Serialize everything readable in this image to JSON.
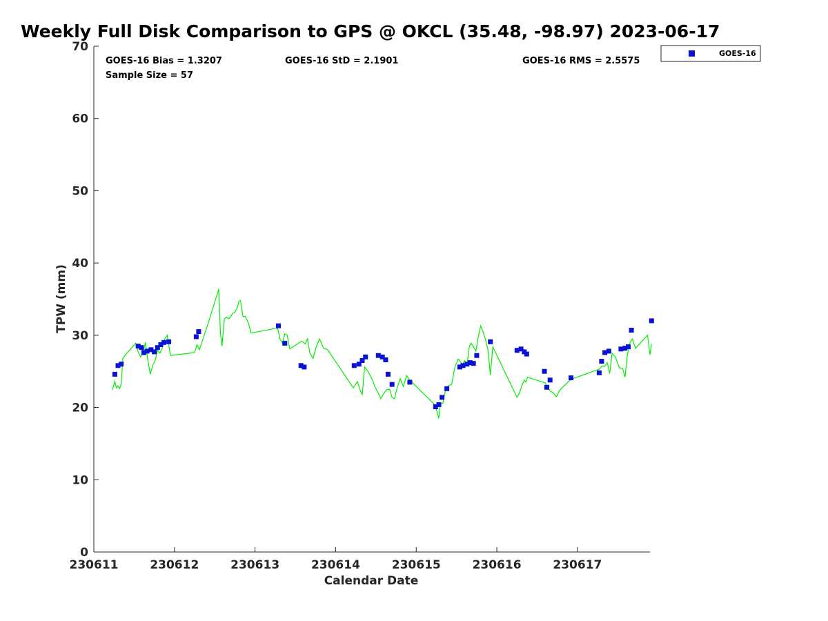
{
  "chart_data": {
    "type": "scatter",
    "title": "Weekly Full Disk Comparison to GPS @ OKCL (35.48, -98.97) 2023-06-17",
    "xlabel": "Calendar Date",
    "ylabel": "TPW (mm)",
    "xlim": [
      230611,
      230617.9
    ],
    "ylim": [
      0,
      70
    ],
    "x_ticks": [
      "230611",
      "230612",
      "230613",
      "230614",
      "230615",
      "230616",
      "230617"
    ],
    "y_ticks": [
      "0",
      "10",
      "20",
      "30",
      "40",
      "50",
      "60",
      "70"
    ],
    "grid": false,
    "legend_position": "top-right",
    "stats": {
      "bias": "GOES-16 Bias = 1.3207",
      "std": "GOES-16 StD = 2.1901",
      "rms": "GOES-16 RMS = 2.5575",
      "sample": "Sample Size = 57"
    },
    "series": [
      {
        "name": "GOES-16",
        "marker": "square",
        "color": "#0a12d6",
        "x": [
          230611.26,
          230611.3,
          230611.34,
          230611.55,
          230611.59,
          230611.62,
          230611.66,
          230611.71,
          230611.75,
          230611.79,
          230611.83,
          230611.87,
          230611.93,
          230612.27,
          230612.3,
          230613.29,
          230613.37,
          230613.57,
          230613.61,
          230614.23,
          230614.29,
          230614.33,
          230614.37,
          230614.53,
          230614.58,
          230614.62,
          230614.65,
          230614.7,
          230614.92,
          230615.24,
          230615.28,
          230615.32,
          230615.38,
          230615.54,
          230615.58,
          230615.63,
          230615.67,
          230615.71,
          230615.75,
          230615.92,
          230616.25,
          230616.3,
          230616.34,
          230616.37,
          230616.59,
          230616.62,
          230616.66,
          230616.92,
          230617.27,
          230617.3,
          230617.34,
          230617.39,
          230617.54,
          230617.59,
          230617.63,
          230617.67,
          230617.92
        ],
        "y": [
          24.6,
          25.8,
          26.0,
          28.5,
          28.3,
          27.6,
          27.8,
          28.0,
          27.7,
          28.3,
          28.7,
          29.0,
          29.1,
          29.8,
          30.5,
          31.3,
          28.9,
          25.8,
          25.6,
          25.8,
          26.0,
          26.5,
          27.0,
          27.2,
          27.0,
          26.6,
          24.6,
          23.2,
          23.5,
          20.1,
          20.4,
          21.4,
          22.6,
          25.6,
          25.8,
          26.0,
          26.2,
          26.1,
          27.2,
          29.1,
          27.9,
          28.1,
          27.7,
          27.4,
          25.0,
          22.8,
          23.8,
          24.1,
          24.8,
          26.4,
          27.6,
          27.8,
          28.1,
          28.2,
          28.4,
          30.7,
          32.0
        ]
      },
      {
        "name": "",
        "color": "#00ee00",
        "x": [
          230611.23,
          230611.26,
          230611.28,
          230611.3,
          230611.32,
          230611.34,
          230611.36,
          230611.4,
          230611.45,
          230611.52,
          230611.55,
          230611.58,
          230611.61,
          230611.64,
          230611.67,
          230611.7,
          230611.73,
          230611.76,
          230611.79,
          230611.82,
          230611.85,
          230611.88,
          230611.91,
          230611.95,
          230612.25,
          230612.28,
          230612.31,
          230612.4,
          230612.55,
          230612.57,
          230612.59,
          230612.62,
          230612.65,
          230612.68,
          230612.72,
          230612.75,
          230612.78,
          230612.8,
          230612.82,
          230612.85,
          230612.88,
          230612.92,
          230612.95,
          230613.28,
          230613.31,
          230613.34,
          230613.37,
          230613.4,
          230613.43,
          230613.58,
          230613.62,
          230613.65,
          230613.68,
          230613.72,
          230613.76,
          230613.8,
          230613.85,
          230613.9,
          230614.22,
          230614.27,
          230614.31,
          230614.33,
          230614.36,
          230614.4,
          230614.45,
          230614.49,
          230614.53,
          230614.56,
          230614.6,
          230614.64,
          230614.67,
          230614.7,
          230614.73,
          230614.76,
          230614.8,
          230614.84,
          230614.88,
          230614.92,
          230615.22,
          230615.25,
          230615.28,
          230615.3,
          230615.33,
          230615.37,
          230615.4,
          230615.44,
          230615.48,
          230615.52,
          230615.55,
          230615.57,
          230615.6,
          230615.63,
          230615.66,
          230615.68,
          230615.71,
          230615.74,
          230615.77,
          230615.8,
          230615.83,
          230615.86,
          230615.89,
          230615.92,
          230615.95,
          230616.25,
          230616.28,
          230616.31,
          230616.34,
          230616.36,
          230616.38,
          230616.6,
          230616.63,
          230616.66,
          230616.7,
          230616.74,
          230616.78,
          230616.92,
          230617.27,
          230617.3,
          230617.34,
          230617.37,
          230617.4,
          230617.43,
          230617.47,
          230617.52,
          230617.56,
          230617.59,
          230617.62,
          230617.65,
          230617.68,
          230617.72,
          230617.87,
          230617.9,
          230617.92
        ],
        "y": [
          22.4,
          23.6,
          22.7,
          23.0,
          22.6,
          23.3,
          26.8,
          27.4,
          28.0,
          28.9,
          27.7,
          27.0,
          27.6,
          29.0,
          26.5,
          24.6,
          25.8,
          26.5,
          27.9,
          27.5,
          28.3,
          29.5,
          30.0,
          27.2,
          27.6,
          28.7,
          28.0,
          31.0,
          36.4,
          30.3,
          28.5,
          32.3,
          32.5,
          32.3,
          33.0,
          33.2,
          33.8,
          34.7,
          34.8,
          32.6,
          32.6,
          31.6,
          30.3,
          31.0,
          29.5,
          28.9,
          30.2,
          30.0,
          28.1,
          29.2,
          28.8,
          29.5,
          27.5,
          26.8,
          28.4,
          29.5,
          28.2,
          28.0,
          22.7,
          23.6,
          22.2,
          21.8,
          25.6,
          25.0,
          24.0,
          22.8,
          22.0,
          21.2,
          22.0,
          22.5,
          22.5,
          21.4,
          21.2,
          22.6,
          24.0,
          22.9,
          24.4,
          23.8,
          20.5,
          19.7,
          18.5,
          20.5,
          20.6,
          22.8,
          23.0,
          23.2,
          25.6,
          26.7,
          26.3,
          25.9,
          26.5,
          25.9,
          28.5,
          28.9,
          28.4,
          27.8,
          29.8,
          31.3,
          30.4,
          29.4,
          28.0,
          24.5,
          28.4,
          21.4,
          22.0,
          23.0,
          23.8,
          23.5,
          24.2,
          23.4,
          22.8,
          22.3,
          22.0,
          21.5,
          22.4,
          23.9,
          25.3,
          25.7,
          25.7,
          26.2,
          24.7,
          27.5,
          27.0,
          25.5,
          25.4,
          24.2,
          27.3,
          28.9,
          29.5,
          28.2,
          30.0,
          27.3,
          28.8
        ]
      }
    ]
  }
}
